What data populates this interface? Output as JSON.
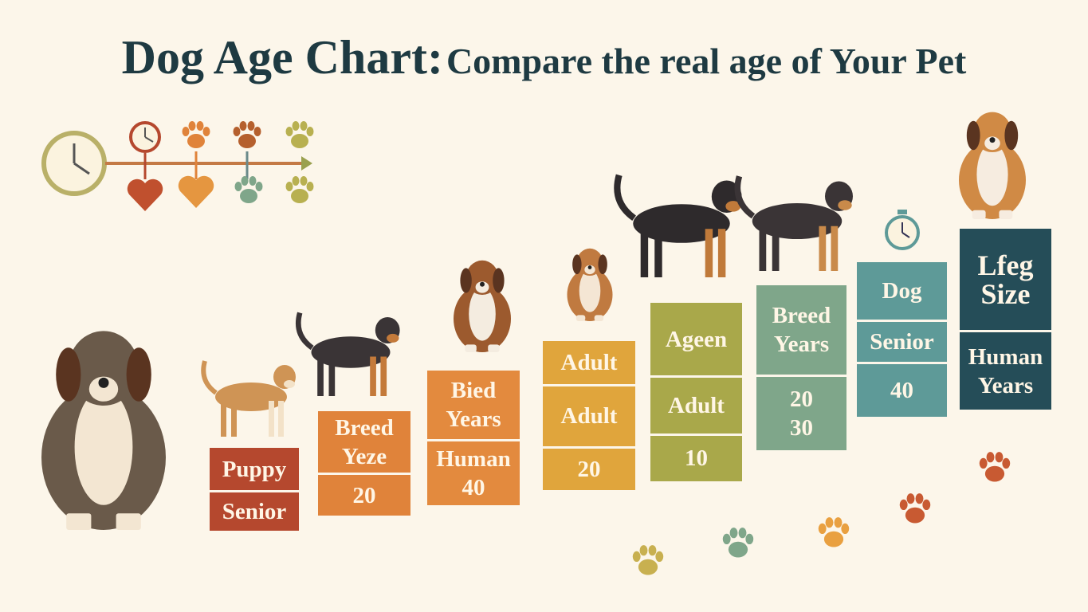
{
  "title": {
    "main": "Dog Age Chart:",
    "sub": "Compare the real age of Your Pet"
  },
  "blocks": [
    {
      "color": "#b5482e",
      "cells": [
        [
          "Puppy"
        ],
        [
          "Senior"
        ]
      ]
    },
    {
      "color": "#e0833a",
      "cells": [
        [
          "Breed",
          "Yeze"
        ],
        [
          "20"
        ]
      ]
    },
    {
      "color": "#e38a3e",
      "cells": [
        [
          "Bied",
          "Years"
        ],
        [
          "Human",
          "40"
        ]
      ]
    },
    {
      "color": "#e0a53c",
      "cells": [
        [
          "Adult"
        ],
        [
          "Adult"
        ],
        [
          "20"
        ]
      ]
    },
    {
      "color": "#a9a84a",
      "cells": [
        [
          "Ageen"
        ],
        [
          "Adult"
        ],
        [
          "10"
        ]
      ]
    },
    {
      "color": "#7fa68a",
      "cells": [
        [
          "Breed",
          "Years"
        ],
        [
          "20",
          "30"
        ]
      ]
    },
    {
      "color": "#5e9a98",
      "cells": [
        [
          "Dog"
        ],
        [
          "Senior"
        ],
        [
          "40"
        ]
      ]
    },
    {
      "color": "#254d58",
      "cells": [
        [
          "Lfeg",
          "Size"
        ],
        [
          "Human",
          "Years"
        ]
      ]
    }
  ],
  "icons": [
    "clock-icon",
    "heart-icon",
    "paw-print-icon",
    "timeline-arrow-icon",
    "dog-illustration"
  ]
}
